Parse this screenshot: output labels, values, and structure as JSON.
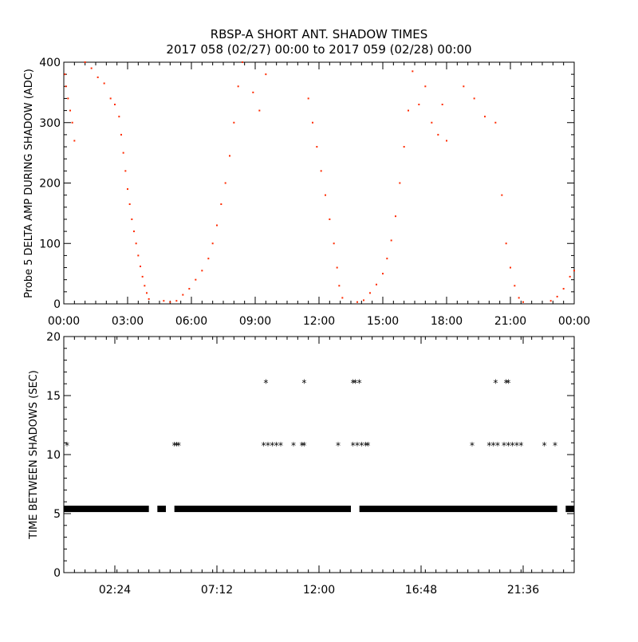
{
  "title_line1": "RBSP-A SHORT ANT. SHADOW TIMES",
  "title_line2": "2017 058 (02/27) 00:00 to 2017 059 (02/28) 00:00",
  "chart_data": [
    {
      "type": "scatter",
      "ylabel": "Probe 5 DELTA AMP DURING SHADOW (ADC)",
      "xlim": [
        0,
        24
      ],
      "ylim": [
        0,
        400
      ],
      "x_unit": "hours of day 2017-02-27",
      "x_tick_labels": [
        "00:00",
        "03:00",
        "06:00",
        "09:00",
        "12:00",
        "15:00",
        "18:00",
        "21:00",
        "00:00"
      ],
      "y_tick_labels": [
        "0",
        "100",
        "200",
        "300",
        "400"
      ],
      "marker_color": "#ff2a00",
      "grid": false,
      "points": [
        [
          0.05,
          380
        ],
        [
          0.1,
          360
        ],
        [
          0.2,
          340
        ],
        [
          0.3,
          320
        ],
        [
          0.4,
          300
        ],
        [
          0.5,
          270
        ],
        [
          1.0,
          400
        ],
        [
          1.3,
          390
        ],
        [
          1.6,
          375
        ],
        [
          1.9,
          365
        ],
        [
          2.2,
          340
        ],
        [
          2.4,
          330
        ],
        [
          2.6,
          310
        ],
        [
          2.7,
          280
        ],
        [
          2.8,
          250
        ],
        [
          2.9,
          220
        ],
        [
          3.0,
          190
        ],
        [
          3.1,
          165
        ],
        [
          3.2,
          140
        ],
        [
          3.3,
          120
        ],
        [
          3.4,
          100
        ],
        [
          3.5,
          80
        ],
        [
          3.6,
          62
        ],
        [
          3.7,
          45
        ],
        [
          3.8,
          30
        ],
        [
          3.9,
          18
        ],
        [
          4.0,
          8
        ],
        [
          4.7,
          5
        ],
        [
          5.0,
          3
        ],
        [
          5.3,
          5
        ],
        [
          5.6,
          15
        ],
        [
          5.9,
          25
        ],
        [
          6.2,
          40
        ],
        [
          6.5,
          55
        ],
        [
          6.8,
          75
        ],
        [
          7.0,
          100
        ],
        [
          7.2,
          130
        ],
        [
          7.4,
          165
        ],
        [
          7.6,
          200
        ],
        [
          7.8,
          245
        ],
        [
          8.0,
          300
        ],
        [
          8.2,
          360
        ],
        [
          8.4,
          400
        ],
        [
          8.9,
          350
        ],
        [
          9.2,
          320
        ],
        [
          9.5,
          380
        ],
        [
          11.5,
          340
        ],
        [
          11.7,
          300
        ],
        [
          11.9,
          260
        ],
        [
          12.1,
          220
        ],
        [
          12.3,
          180
        ],
        [
          12.5,
          140
        ],
        [
          12.7,
          100
        ],
        [
          12.85,
          60
        ],
        [
          12.95,
          30
        ],
        [
          13.1,
          10
        ],
        [
          13.8,
          3
        ],
        [
          14.1,
          6
        ],
        [
          14.4,
          18
        ],
        [
          14.7,
          32
        ],
        [
          15.0,
          50
        ],
        [
          15.2,
          75
        ],
        [
          15.4,
          105
        ],
        [
          15.6,
          145
        ],
        [
          15.8,
          200
        ],
        [
          16.0,
          260
        ],
        [
          16.2,
          320
        ],
        [
          16.4,
          385
        ],
        [
          16.7,
          330
        ],
        [
          17.0,
          360
        ],
        [
          17.3,
          300
        ],
        [
          17.6,
          280
        ],
        [
          17.8,
          330
        ],
        [
          18.0,
          270
        ],
        [
          18.8,
          360
        ],
        [
          19.3,
          340
        ],
        [
          19.8,
          310
        ],
        [
          20.3,
          300
        ],
        [
          20.6,
          180
        ],
        [
          20.8,
          100
        ],
        [
          21.0,
          60
        ],
        [
          21.2,
          30
        ],
        [
          21.4,
          10
        ],
        [
          21.6,
          3
        ],
        [
          22.9,
          5
        ],
        [
          23.2,
          12
        ],
        [
          23.5,
          25
        ],
        [
          23.8,
          45
        ],
        [
          24.0,
          55
        ]
      ]
    },
    {
      "type": "scatter",
      "ylabel": "TIME BETWEEN SHADOWS (SEC)",
      "xlim": [
        0,
        24
      ],
      "ylim": [
        0,
        20
      ],
      "x_unit": "hours of day 2017-02-27",
      "x_tick_labels": [
        "02:24",
        "07:12",
        "12:00",
        "16:48",
        "21:36"
      ],
      "y_tick_labels": [
        "0",
        "5",
        "10",
        "15",
        "20"
      ],
      "marker": "*",
      "marker_color": "#000000",
      "grid": false,
      "band_value": 5.4,
      "band_segments": [
        [
          0.0,
          4.0
        ],
        [
          4.4,
          4.8
        ],
        [
          5.2,
          13.5
        ],
        [
          13.9,
          23.2
        ],
        [
          23.6,
          24.0
        ]
      ],
      "points": [
        [
          0.15,
          10.8
        ],
        [
          5.2,
          10.8
        ],
        [
          5.3,
          10.8
        ],
        [
          5.4,
          10.8
        ],
        [
          9.5,
          16.1
        ],
        [
          9.4,
          10.8
        ],
        [
          9.6,
          10.8
        ],
        [
          9.8,
          10.8
        ],
        [
          10.0,
          10.8
        ],
        [
          10.2,
          10.8
        ],
        [
          10.8,
          10.8
        ],
        [
          11.3,
          16.1
        ],
        [
          11.2,
          10.8
        ],
        [
          11.3,
          10.8
        ],
        [
          12.9,
          10.8
        ],
        [
          13.6,
          16.1
        ],
        [
          13.7,
          16.1
        ],
        [
          13.9,
          16.1
        ],
        [
          13.6,
          10.8
        ],
        [
          13.8,
          10.8
        ],
        [
          14.0,
          10.8
        ],
        [
          14.2,
          10.8
        ],
        [
          14.3,
          10.8
        ],
        [
          19.2,
          10.8
        ],
        [
          20.0,
          10.8
        ],
        [
          20.2,
          10.8
        ],
        [
          20.4,
          10.8
        ],
        [
          20.3,
          16.1
        ],
        [
          20.8,
          16.1
        ],
        [
          20.9,
          16.1
        ],
        [
          20.7,
          10.8
        ],
        [
          20.9,
          10.8
        ],
        [
          21.1,
          10.8
        ],
        [
          21.3,
          10.8
        ],
        [
          21.5,
          10.8
        ],
        [
          22.6,
          10.8
        ],
        [
          23.1,
          10.8
        ]
      ]
    }
  ]
}
